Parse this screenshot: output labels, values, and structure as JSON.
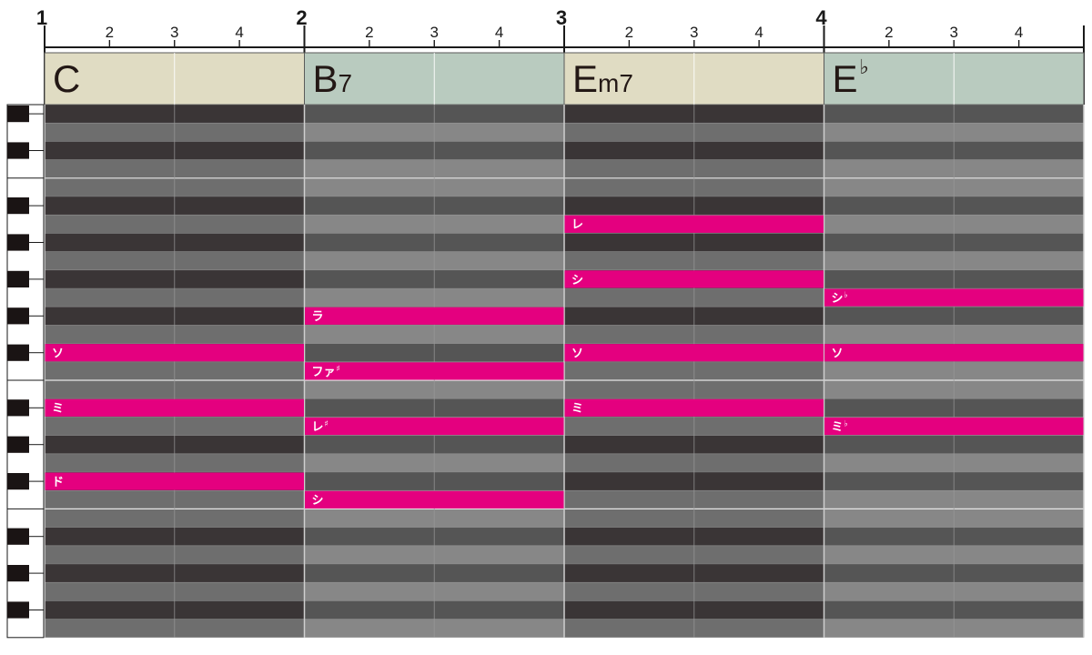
{
  "ruler": {
    "measure_numbers": [
      "1",
      "2",
      "3",
      "4"
    ],
    "beat_numbers": [
      "2",
      "3",
      "4"
    ]
  },
  "chords": [
    {
      "root": "C",
      "quality": "",
      "color": "#e0dcc3"
    },
    {
      "root": "B",
      "quality": "7",
      "color": "#b9cbbf"
    },
    {
      "root": "E",
      "quality": "m7",
      "color": "#e0dcc3"
    },
    {
      "root": "E",
      "quality": "♭",
      "color": "#b9cbbf"
    }
  ],
  "rows": {
    "count": 29,
    "pattern": [
      "dark",
      "light",
      "dark",
      "light",
      "light",
      "dark",
      "light",
      "dark",
      "light",
      "dark",
      "light",
      "dark",
      "light",
      "dark",
      "light",
      "light",
      "dark",
      "light",
      "dark",
      "light",
      "dark",
      "light",
      "light",
      "dark",
      "light",
      "dark",
      "light",
      "dark",
      "light"
    ]
  },
  "notes": [
    {
      "measure": 1,
      "row": 13,
      "label": "ソ"
    },
    {
      "measure": 1,
      "row": 16,
      "label": "ミ"
    },
    {
      "measure": 1,
      "row": 20,
      "label": "ド"
    },
    {
      "measure": 2,
      "row": 11,
      "label": "ラ"
    },
    {
      "measure": 2,
      "row": 14,
      "label": "ファ♯"
    },
    {
      "measure": 2,
      "row": 17,
      "label": "レ♯"
    },
    {
      "measure": 2,
      "row": 21,
      "label": "シ"
    },
    {
      "measure": 3,
      "row": 6,
      "label": "レ"
    },
    {
      "measure": 3,
      "row": 9,
      "label": "シ"
    },
    {
      "measure": 3,
      "row": 13,
      "label": "ソ"
    },
    {
      "measure": 3,
      "row": 16,
      "label": "ミ"
    },
    {
      "measure": 4,
      "row": 10,
      "label": "シ♭"
    },
    {
      "measure": 4,
      "row": 13,
      "label": "ソ"
    },
    {
      "measure": 4,
      "row": 17,
      "label": "ミ♭"
    }
  ],
  "colors": {
    "note": "#e4007f",
    "row_dark_a": "#3a3536",
    "row_dark_b": "#555555",
    "row_light_a": "#6e6e6e",
    "row_light_b": "#878787",
    "ruler_line": "#1a1a1a"
  }
}
